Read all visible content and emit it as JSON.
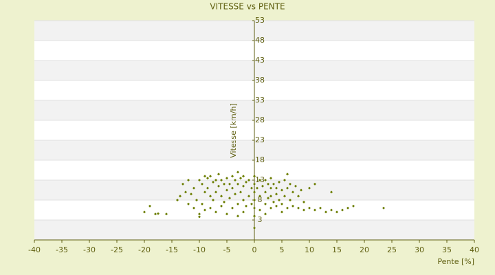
{
  "chart_data": {
    "type": "scatter",
    "title": "VITESSE vs PENTE",
    "x_label": "Pente [%]",
    "y_label": "Vitesse [km/h]",
    "color": "#6b7d00",
    "xlim": [
      -40,
      40
    ],
    "xticks": [
      -40,
      -35,
      -30,
      -25,
      -20,
      -15,
      -10,
      -5,
      0,
      5,
      10,
      15,
      20,
      25,
      30,
      35,
      40
    ],
    "ylim": [
      -2,
      53
    ],
    "yticks": [
      3,
      8,
      13,
      18,
      23,
      28,
      33,
      38,
      43,
      48,
      53
    ],
    "grid": true,
    "x": [
      -20,
      -19,
      -18,
      -17.5,
      -16,
      -14,
      -13.5,
      -13,
      -12.5,
      -12,
      -12,
      -11.5,
      -11,
      -11,
      -10.5,
      -10,
      -10,
      -10,
      -9.5,
      -9.5,
      -9,
      -9,
      -9,
      -8.5,
      -8.5,
      -8,
      -8,
      -8,
      -7.5,
      -7.5,
      -7,
      -7,
      -7,
      -6.5,
      -6.5,
      -6,
      -6,
      -6,
      -5.5,
      -5.5,
      -5,
      -5,
      -5,
      -4.5,
      -4.5,
      -4,
      -4,
      -4,
      -3.5,
      -3.5,
      -3,
      -3,
      -3,
      -3,
      -2.5,
      -2.5,
      -2,
      -2,
      -2,
      -2,
      -1.5,
      -1.5,
      -1,
      -1,
      -0.5,
      -0.5,
      0,
      0,
      0,
      0,
      0,
      0,
      0,
      0.5,
      1,
      1,
      1,
      1.5,
      2,
      2,
      2,
      2,
      2.5,
      2.5,
      3,
      3,
      3,
      3,
      3.5,
      3.5,
      4,
      4,
      4,
      4.5,
      4.5,
      5,
      5,
      5,
      5.5,
      5.5,
      6,
      6,
      6,
      6.5,
      6.5,
      7,
      7,
      7.5,
      8,
      8,
      8.5,
      9,
      9,
      10,
      10,
      11,
      11,
      12,
      13,
      14,
      14,
      15,
      16,
      17,
      18,
      23.5
    ],
    "y": [
      5,
      6.5,
      4.5,
      4.6,
      4.5,
      8,
      9,
      12,
      10,
      7,
      13,
      9.5,
      6,
      11,
      8,
      13,
      4.5,
      3.8,
      12,
      7,
      14,
      10,
      5.5,
      13.5,
      11,
      14,
      9,
      6,
      12.5,
      8,
      13,
      10,
      5,
      14.5,
      11.5,
      13,
      9,
      6.5,
      12,
      7.5,
      13.5,
      10.5,
      4.5,
      12,
      8.5,
      14,
      11,
      6,
      13,
      9.5,
      15,
      12,
      7,
      4,
      13.5,
      10,
      14,
      11.5,
      8,
      5,
      12.5,
      6.5,
      13,
      9,
      11,
      7,
      14,
      12,
      10,
      8,
      6,
      4,
      1,
      11,
      13,
      9,
      5.5,
      11.5,
      13,
      10,
      7,
      4.5,
      12,
      8.5,
      13.5,
      11,
      9,
      6,
      12,
      7.5,
      11,
      9.5,
      6.5,
      12.5,
      8,
      10.5,
      7,
      5,
      13,
      9,
      14.5,
      11,
      6,
      12,
      8,
      10,
      6.5,
      11.5,
      9,
      6,
      10.5,
      7.5,
      5.5,
      11,
      6,
      12,
      5.5,
      6,
      5,
      10,
      5.5,
      5,
      5.5,
      6,
      6.5,
      6
    ]
  }
}
